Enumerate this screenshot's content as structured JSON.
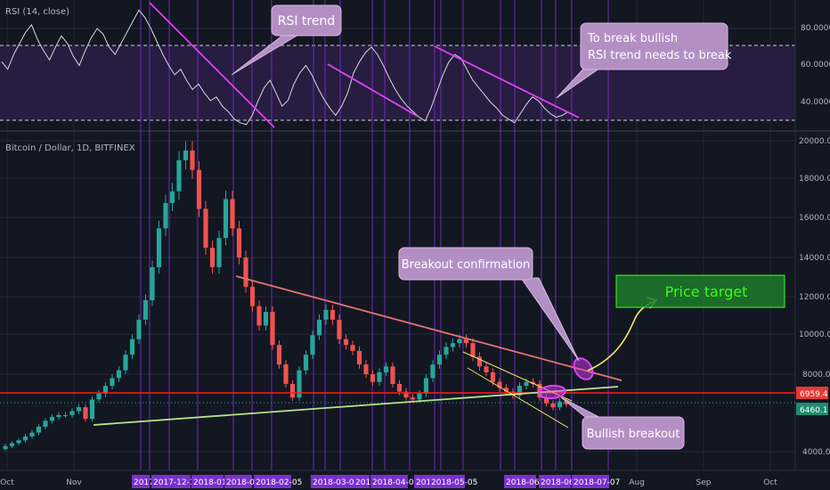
{
  "colors": {
    "background": "#131722",
    "grid": "#2a2e39",
    "rsi_line": "#d8d8d8",
    "rsi_band": "#2b1f45",
    "bull_candle": "#26a69a",
    "bear_candle": "#ef5350",
    "trend_magenta": "#e040fb",
    "resistance_line": "#e57373",
    "support_line": "#b5e48c",
    "horizontal_level": "#ff1a1a",
    "channel_yellow": "#f5e663",
    "vertical_marker": "#7b2fd0",
    "callout_fill": "#b48fc4",
    "target_fill": "#1f7a2c",
    "target_text": "#39ff14",
    "axis_text": "#b2b5be"
  },
  "rsi_panel": {
    "legend": "RSI (14, close)",
    "levels": [
      "80.0000",
      "60.0000",
      "40.0000"
    ],
    "upper_band": 70,
    "lower_band": 30
  },
  "price_panel": {
    "legend": "Bitcoin / Dollar, 1D, BITFINEX",
    "levels": [
      "20000.0",
      "18000.0",
      "16000.0",
      "14000.0",
      "12000.0",
      "10000.0",
      "8000.0",
      "4000.0"
    ],
    "last_price_label": "6959.4",
    "current_price_label": "6460.1"
  },
  "x_axis": {
    "ticks": [
      "Oct",
      "Nov",
      "Aug",
      "Sep",
      "Oct"
    ],
    "highlighted_ticks": [
      "2017",
      "2017-12-16",
      "2018-01-",
      "2018-01-2",
      "2018-02-05",
      "2018-03-04",
      "2018-0",
      "2018-04-03",
      "2018-0",
      "2018-05-05",
      "2018-06-",
      "2018-06-",
      "2018-07-07"
    ]
  },
  "annotations": {
    "rsi_trend": "RSI trend",
    "rsi_break_line1": "To break bullish",
    "rsi_break_line2": "RSI trend needs to break",
    "breakout_confirmation": "Breakout confirmation",
    "bullish_breakout": "Bullish breakout",
    "price_target": "Price target"
  },
  "chart_data": [
    {
      "type": "line",
      "title": "RSI (14, close)",
      "yticks": [
        40,
        60,
        80
      ],
      "bands": [
        30,
        70
      ],
      "series": [
        {
          "name": "RSI (14, close)",
          "values": [
            62,
            58,
            66,
            72,
            78,
            82,
            74,
            68,
            63,
            70,
            76,
            72,
            65,
            60,
            68,
            75,
            80,
            77,
            70,
            66,
            72,
            78,
            84,
            90,
            86,
            80,
            73,
            66,
            60,
            55,
            58,
            52,
            47,
            50,
            45,
            41,
            43,
            38,
            35,
            31,
            29,
            28,
            33,
            41,
            48,
            52,
            45,
            38,
            41,
            50,
            56,
            60,
            55,
            48,
            42,
            37,
            33,
            38,
            45,
            56,
            62,
            67,
            70,
            66,
            60,
            53,
            47,
            42,
            38,
            35,
            32,
            30,
            37,
            46,
            55,
            62,
            66,
            64,
            58,
            52,
            48,
            44,
            40,
            37,
            33,
            31,
            29,
            34,
            39,
            43,
            41,
            37,
            34,
            32,
            33,
            35
          ]
        }
      ]
    },
    {
      "type": "line",
      "title": "Bitcoin / Dollar, 1D, BITFINEX",
      "x_label": "",
      "y_label": "",
      "ylim": [
        3500,
        20300
      ],
      "yticks": [
        4000,
        8000,
        10000,
        12000,
        14000,
        16000,
        18000,
        20000
      ],
      "series": [
        {
          "name": "Bitcoin / Dollar",
          "values": [
            4300,
            4450,
            4600,
            4800,
            5000,
            5300,
            5600,
            5800,
            5900,
            5900,
            6100,
            6300,
            5700,
            6700,
            7000,
            7400,
            7800,
            8200,
            9000,
            9800,
            10800,
            11800,
            13500,
            15500,
            16800,
            17400,
            19000,
            19500,
            18500,
            16500,
            14500,
            13500,
            15000,
            17000,
            15500,
            14000,
            12500,
            11500,
            10500,
            11200,
            9500,
            8500,
            7500,
            6800,
            8200,
            9000,
            10000,
            10800,
            11300,
            10800,
            9800,
            9500,
            9200,
            8500,
            8000,
            7600,
            8100,
            8400,
            7500,
            7100,
            6800,
            6700,
            7000,
            7800,
            8500,
            9000,
            9400,
            9600,
            9800,
            9600,
            8900,
            8400,
            8100,
            7600,
            7300,
            7100,
            6900,
            7400,
            7600,
            7500,
            6800,
            6500,
            6300,
            6600,
            6460
          ]
        }
      ],
      "horizontal_levels": [
        6959.4,
        6460.1
      ],
      "trendlines": [
        "descending resistance",
        "ascending support",
        "descending channel"
      ],
      "target_zone": {
        "label": "Price target",
        "low": 11800,
        "high": 13000
      }
    }
  ]
}
